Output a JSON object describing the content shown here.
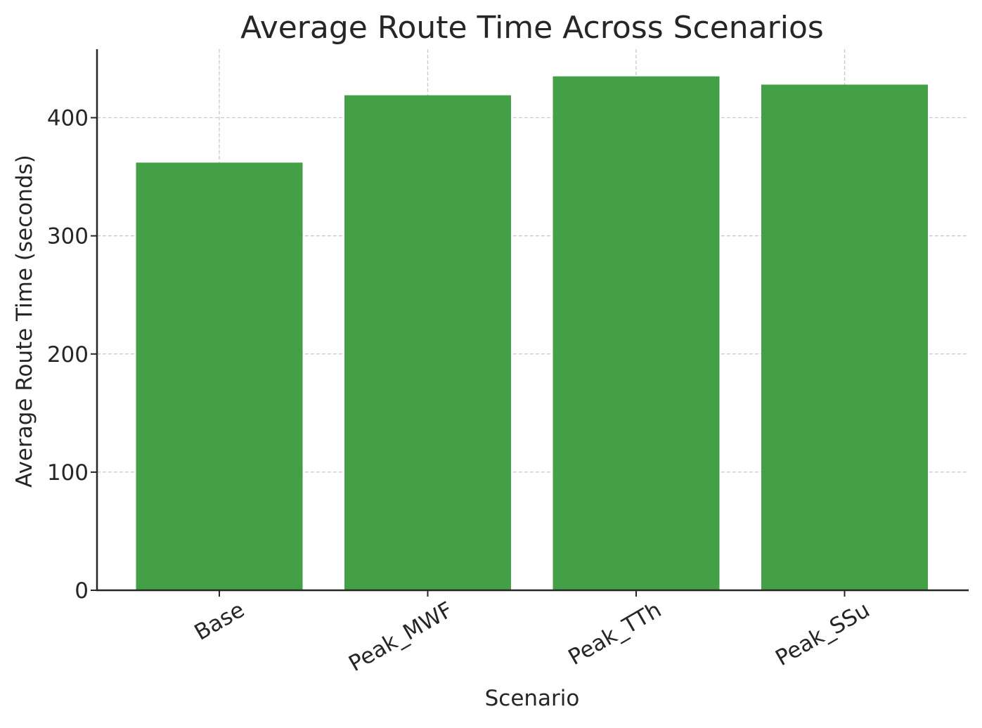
{
  "chart_data": {
    "type": "bar",
    "title": "Average Route Time Across Scenarios",
    "xlabel": "Scenario",
    "ylabel": "Average Route Time (seconds)",
    "categories": [
      "Base",
      "Peak_MWF",
      "Peak_TTh",
      "Peak_SSu"
    ],
    "values": [
      362,
      419,
      435,
      428
    ],
    "ylim": [
      0,
      458
    ],
    "yticks": [
      0,
      100,
      200,
      300,
      400
    ],
    "grid": true,
    "bar_color": "#43a047"
  }
}
